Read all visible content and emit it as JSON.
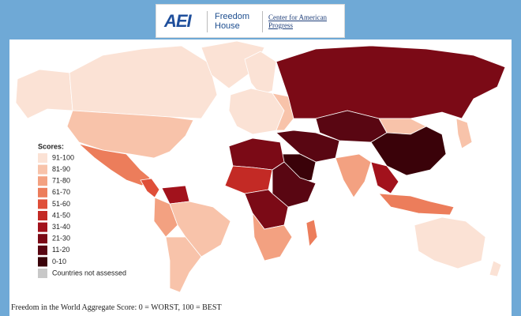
{
  "header": {
    "aei": "AEI",
    "freedom_house": "Freedom House",
    "cap": "Center for American Progress"
  },
  "legend": {
    "title": "Scores:",
    "items": [
      {
        "label": "91-100",
        "color": "#fbe2d5"
      },
      {
        "label": "81-90",
        "color": "#f8c3aa"
      },
      {
        "label": "71-80",
        "color": "#f3a181"
      },
      {
        "label": "61-70",
        "color": "#ec7d5b"
      },
      {
        "label": "51-60",
        "color": "#df4f39"
      },
      {
        "label": "41-50",
        "color": "#c32a25"
      },
      {
        "label": "31-40",
        "color": "#a2121c"
      },
      {
        "label": "21-30",
        "color": "#7b0a16"
      },
      {
        "label": "11-20",
        "color": "#590612"
      },
      {
        "label": "0-10",
        "color": "#3a0209"
      },
      {
        "label": "Countries not assessed",
        "color": "#c8c8c8"
      }
    ]
  },
  "caption": "Freedom in the World Aggregate Score: 0 = WORST, 100 = BEST"
}
